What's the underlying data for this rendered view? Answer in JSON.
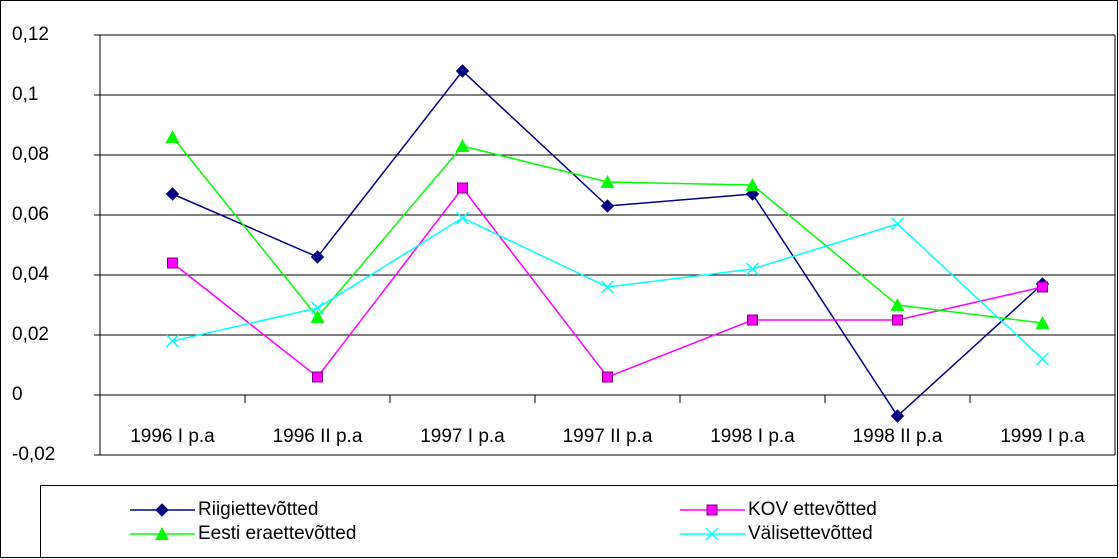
{
  "chart_data": {
    "type": "line",
    "categories": [
      "1996 I p.a",
      "1996 II p.a",
      "1997 I p.a",
      "1997 II p.a",
      "1998 I p.a",
      "1998 II p.a",
      "1999 I p.a"
    ],
    "series": [
      {
        "name": "Riigiettevõtted",
        "color": "#000080",
        "marker": "diamond",
        "values": [
          0.067,
          0.046,
          0.108,
          0.063,
          0.067,
          -0.007,
          0.037
        ]
      },
      {
        "name": "KOV ettevõtted",
        "color": "#ff00ff",
        "marker": "square",
        "values": [
          0.044,
          0.006,
          0.069,
          0.006,
          0.025,
          0.025,
          0.036
        ]
      },
      {
        "name": "Eesti eraettevõtted",
        "color": "#00ff00",
        "marker": "triangle",
        "values": [
          0.086,
          0.026,
          0.083,
          0.071,
          0.07,
          0.03,
          0.024
        ]
      },
      {
        "name": "Välisettevõtted",
        "color": "#00ffff",
        "marker": "x",
        "values": [
          0.018,
          0.029,
          0.059,
          0.036,
          0.042,
          0.057,
          0.012
        ]
      }
    ],
    "ylim": [
      -0.02,
      0.12
    ],
    "yticks": [
      {
        "value": 0.12,
        "label": "0,12"
      },
      {
        "value": 0.1,
        "label": "0,1"
      },
      {
        "value": 0.08,
        "label": "0,08"
      },
      {
        "value": 0.06,
        "label": "0,06"
      },
      {
        "value": 0.04,
        "label": "0,04"
      },
      {
        "value": 0.02,
        "label": "0,02"
      },
      0,
      {
        "value": -0.02,
        "label": "-0,02"
      }
    ],
    "grid": true,
    "legend": "bottom"
  }
}
